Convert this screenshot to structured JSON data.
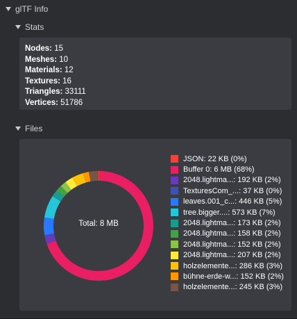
{
  "root": {
    "title": "glTF Info"
  },
  "stats": {
    "title": "Stats",
    "items": [
      {
        "label": "Nodes:",
        "value": "15"
      },
      {
        "label": "Meshes:",
        "value": "10"
      },
      {
        "label": "Materials:",
        "value": "12"
      },
      {
        "label": "Textures:",
        "value": "16"
      },
      {
        "label": "Triangles:",
        "value": "33111"
      },
      {
        "label": "Vertices:",
        "value": "51786"
      }
    ]
  },
  "files": {
    "title": "Files",
    "total_label": "Total: 8 MB",
    "legend": [
      {
        "label": "JSON: 22 KB (0%)",
        "color": "#f44336"
      },
      {
        "label": "Buffer 0: 6 MB (68%)",
        "color": "#e91e63"
      },
      {
        "label": "2048.lightma...: 192 KB (2%)",
        "color": "#673ab7"
      },
      {
        "label": "TexturesCom_...: 37 KB (0%)",
        "color": "#3f51b5"
      },
      {
        "label": "leaves.001_c...: 446 KB (5%)",
        "color": "#2979ff"
      },
      {
        "label": "tree.bigger....: 573 KB (7%)",
        "color": "#26c6da"
      },
      {
        "label": "2048.lightma...: 173 KB (2%)",
        "color": "#1a9c8c"
      },
      {
        "label": "2048.lightma...: 158 KB (2%)",
        "color": "#43a047"
      },
      {
        "label": "2048.lightma...: 152 KB (2%)",
        "color": "#8bc34a"
      },
      {
        "label": "2048.lightma...: 207 KB (2%)",
        "color": "#ffeb3b"
      },
      {
        "label": "holzelemente...: 286 KB (3%)",
        "color": "#ffc107"
      },
      {
        "label": "bühne-erde-w...: 152 KB (2%)",
        "color": "#ff9800"
      },
      {
        "label": "holzelemente...: 245 KB (3%)",
        "color": "#795548"
      }
    ]
  },
  "chart_data": {
    "type": "pie",
    "categories": [
      "JSON",
      "Buffer 0",
      "2048.lightma...",
      "TexturesCom_...",
      "leaves.001_c...",
      "tree.bigger....",
      "2048.lightma...",
      "2048.lightma...",
      "2048.lightma...",
      "2048.lightma...",
      "holzelemente...",
      "bühne-erde-w...",
      "holzelemente..."
    ],
    "values": [
      22,
      6000,
      192,
      37,
      446,
      573,
      173,
      158,
      152,
      207,
      286,
      152,
      245
    ],
    "colors": [
      "#f44336",
      "#e91e63",
      "#673ab7",
      "#3f51b5",
      "#2979ff",
      "#26c6da",
      "#1a9c8c",
      "#43a047",
      "#8bc34a",
      "#ffeb3b",
      "#ffc107",
      "#ff9800",
      "#795548"
    ],
    "donut": true
  }
}
